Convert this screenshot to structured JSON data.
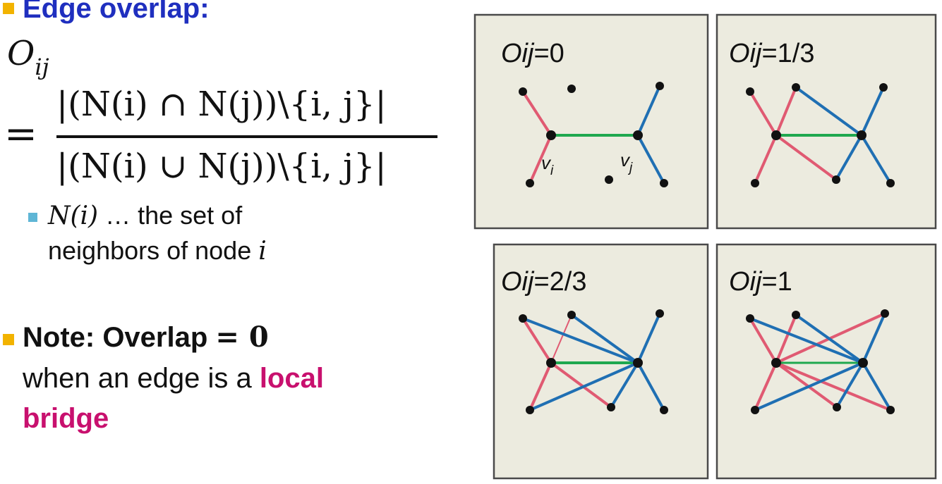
{
  "left": {
    "heading": "Edge overlap:",
    "formula": {
      "lhs_letter": "O",
      "lhs_sub": "ij",
      "eq": "=",
      "numerator": "|(N(i) ∩ N(j))\\{i, j}|",
      "denominator": "|(N(i) ∪ N(j))\\{i, j}|"
    },
    "sub_bullet": {
      "line1_math": "N(i)",
      "line1_rest": " … the set of",
      "line2_text": "neighbors of node ",
      "line2_var": "i"
    },
    "note": {
      "label": "Note: Overlap",
      "eq_value": "=  0",
      "line2_pre": "when an edge is a ",
      "line2_hl": "local",
      "line3_hl": "bridge"
    }
  },
  "panels": [
    {
      "label_var": "Oij",
      "label_val": "=0"
    },
    {
      "label_var": "Oij",
      "label_val": "=1/3"
    },
    {
      "label_var": "Oij",
      "label_val": "=2/3"
    },
    {
      "label_var": "Oij",
      "label_val": "=1"
    }
  ],
  "node_labels": {
    "vi": "v",
    "vi_sub": "i",
    "vj": "v",
    "vj_sub": "j"
  },
  "colors": {
    "heading": "#1f2fbf",
    "highlight": "#c8106e",
    "bullet": "#f2b300",
    "sub_bullet": "#5fb6d6",
    "panel_bg": "#ecebdf",
    "red_edge": "#e05a72",
    "blue_edge": "#1f6fb3",
    "green_edge": "#1fa84f"
  },
  "icons": [
    "bullet-square-icon",
    "sub-bullet-square-icon"
  ]
}
